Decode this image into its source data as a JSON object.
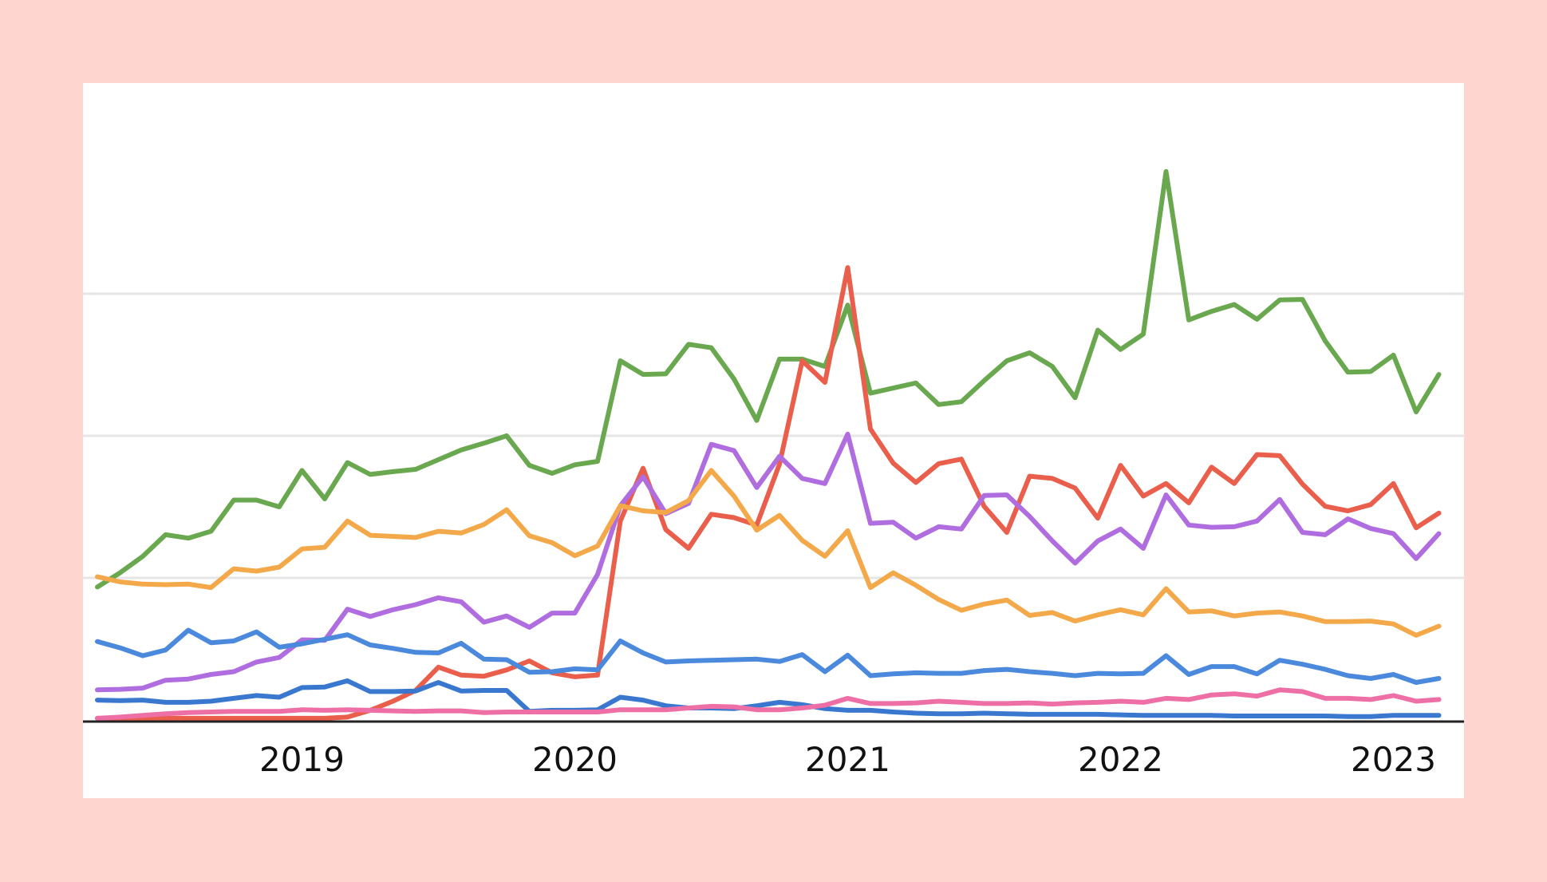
{
  "chart_data": {
    "type": "line",
    "title": "",
    "xlabel": "",
    "ylabel": "",
    "x_ticks": [
      "2019",
      "2020",
      "2021",
      "2022",
      "2023"
    ],
    "x_start": "2018-04",
    "x_step": "month",
    "ylim": [
      0,
      100
    ],
    "y_grid": [
      25,
      50,
      75
    ],
    "grid": true,
    "legend": "none",
    "series": [
      {
        "color": "#6aa84f",
        "values": [
          23.4,
          25.9,
          28.8,
          32.6,
          32.0,
          33.2,
          38.7,
          38.7,
          37.5,
          43.9,
          38.9,
          45.3,
          43.2,
          43.7,
          44.1,
          45.8,
          47.5,
          48.7,
          50.0,
          44.8,
          43.4,
          44.9,
          45.5,
          63.2,
          60.8,
          60.9,
          66.1,
          65.5,
          60.0,
          52.7,
          63.5,
          63.5,
          62.2,
          73.0,
          57.5,
          58.4,
          59.3,
          55.5,
          56.0,
          59.7,
          63.2,
          64.6,
          62.2,
          56.7,
          68.6,
          65.2,
          67.9,
          96.5,
          70.4,
          71.9,
          73.1,
          70.5,
          73.9,
          74.0,
          66.7,
          61.2,
          61.3,
          64.2,
          54.2,
          60.8
        ]
      },
      {
        "color": "#ea5e4c",
        "values": [
          0.3,
          0.3,
          0.3,
          0.3,
          0.3,
          0.3,
          0.3,
          0.3,
          0.3,
          0.3,
          0.3,
          0.5,
          1.7,
          3.3,
          5.2,
          9.3,
          7.9,
          7.7,
          8.8,
          10.4,
          8.3,
          7.6,
          7.9,
          35.0,
          44.3,
          33.5,
          30.2,
          36.2,
          35.6,
          34.3,
          45.0,
          63.2,
          59.4,
          79.6,
          51.2,
          45.2,
          41.8,
          45.1,
          45.9,
          37.6,
          33.0,
          42.9,
          42.5,
          40.8,
          35.5,
          44.8,
          39.4,
          41.6,
          38.2,
          44.5,
          41.6,
          46.7,
          46.5,
          41.5,
          37.6,
          36.8,
          37.9,
          41.6,
          33.8,
          36.4
        ]
      },
      {
        "color": "#b06de0",
        "values": [
          5.3,
          5.4,
          5.6,
          7.0,
          7.2,
          8.0,
          8.5,
          10.2,
          11.0,
          14.1,
          14.0,
          19.5,
          18.2,
          19.4,
          20.3,
          21.5,
          20.8,
          17.2,
          18.3,
          16.3,
          18.8,
          18.8,
          25.6,
          37.7,
          42.8,
          36.3,
          38.1,
          48.5,
          47.4,
          40.9,
          46.4,
          42.5,
          41.6,
          50.3,
          34.6,
          34.8,
          32.0,
          34.0,
          33.6,
          39.5,
          39.6,
          35.8,
          31.5,
          27.6,
          31.5,
          33.6,
          30.2,
          39.6,
          34.3,
          33.9,
          34.0,
          35.0,
          38.8,
          33.0,
          32.6,
          35.4,
          33.7,
          32.8,
          28.4,
          32.8
        ]
      },
      {
        "color": "#f3a84a",
        "values": [
          25.2,
          24.3,
          23.9,
          23.8,
          23.9,
          23.3,
          26.6,
          26.2,
          26.9,
          30.1,
          30.4,
          35.0,
          32.5,
          32.3,
          32.1,
          33.2,
          32.9,
          34.4,
          37.0,
          32.4,
          31.2,
          28.9,
          30.6,
          37.7,
          36.8,
          36.5,
          38.6,
          43.9,
          39.4,
          33.4,
          36.0,
          31.6,
          28.8,
          33.3,
          23.3,
          25.9,
          23.7,
          21.2,
          19.3,
          20.4,
          21.1,
          18.4,
          18.9,
          17.4,
          18.5,
          19.4,
          18.5,
          23.1,
          19.0,
          19.2,
          18.3,
          18.8,
          19.0,
          18.3,
          17.3,
          17.3,
          17.4,
          16.9,
          14.9,
          16.5
        ]
      },
      {
        "color": "#4a89dc",
        "values": [
          13.8,
          12.7,
          11.3,
          12.3,
          15.8,
          13.6,
          13.9,
          15.5,
          12.8,
          13.4,
          14.2,
          15.0,
          13.2,
          12.6,
          11.9,
          11.8,
          13.5,
          10.7,
          10.6,
          8.4,
          8.5,
          9.0,
          8.8,
          13.9,
          11.8,
          10.2,
          10.4,
          10.5,
          10.6,
          10.7,
          10.3,
          11.5,
          8.5,
          11.4,
          7.8,
          8.1,
          8.3,
          8.2,
          8.2,
          8.7,
          8.9,
          8.5,
          8.2,
          7.8,
          8.2,
          8.1,
          8.2,
          11.3,
          8.0,
          9.4,
          9.4,
          8.1,
          10.5,
          9.8,
          8.9,
          7.8,
          7.3,
          8.0,
          6.6,
          7.3
        ]
      },
      {
        "color": "#3a78d0",
        "values": [
          3.5,
          3.4,
          3.5,
          3.1,
          3.1,
          3.3,
          3.8,
          4.3,
          4.0,
          5.7,
          5.8,
          6.9,
          5.0,
          5.0,
          5.1,
          6.6,
          5.1,
          5.2,
          5.2,
          1.5,
          1.7,
          1.7,
          1.8,
          4.0,
          3.5,
          2.5,
          2.1,
          2.1,
          2.0,
          2.5,
          3.1,
          2.7,
          2.0,
          1.7,
          1.7,
          1.4,
          1.2,
          1.1,
          1.1,
          1.2,
          1.1,
          1.0,
          1.0,
          1.0,
          1.0,
          0.9,
          0.8,
          0.8,
          0.8,
          0.8,
          0.7,
          0.7,
          0.7,
          0.7,
          0.7,
          0.6,
          0.6,
          0.8,
          0.8,
          0.8
        ]
      },
      {
        "color": "#ee6fa5",
        "values": [
          0.3,
          0.5,
          0.8,
          1.1,
          1.3,
          1.4,
          1.5,
          1.5,
          1.5,
          1.8,
          1.7,
          1.8,
          1.7,
          1.6,
          1.5,
          1.6,
          1.6,
          1.3,
          1.4,
          1.4,
          1.4,
          1.4,
          1.4,
          1.8,
          1.8,
          1.8,
          2.1,
          2.4,
          2.3,
          1.8,
          1.8,
          2.1,
          2.6,
          3.8,
          2.9,
          2.9,
          3.0,
          3.3,
          3.1,
          2.9,
          2.9,
          3.0,
          2.8,
          3.0,
          3.1,
          3.3,
          3.1,
          3.8,
          3.6,
          4.4,
          4.6,
          4.2,
          5.3,
          5.0,
          3.8,
          3.8,
          3.6,
          4.3,
          3.3,
          3.6
        ]
      }
    ]
  }
}
